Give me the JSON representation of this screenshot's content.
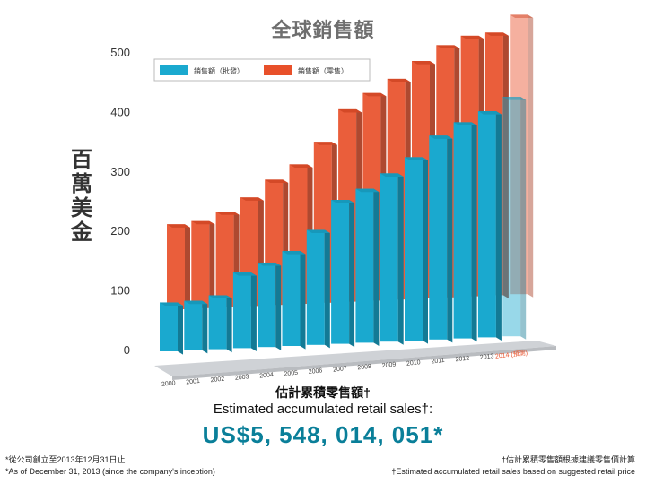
{
  "chart_data": {
    "type": "bar",
    "title": "全球銷售額",
    "ylabel": "百萬美金",
    "xlabel": "",
    "ylim": [
      0,
      500
    ],
    "yticks": [
      0,
      100,
      200,
      300,
      400,
      500
    ],
    "categories": [
      "2000",
      "2001",
      "2002",
      "2003",
      "2004",
      "2005",
      "2006",
      "2007",
      "2008",
      "2009",
      "2010",
      "2011",
      "2012",
      "2013",
      "2014 (預測)"
    ],
    "series": [
      {
        "name": "銷售額（批發）",
        "color": "#1aa9cf",
        "values": [
          88,
          89,
          97,
          136,
          152,
          171,
          207,
          259,
          277,
          303,
          330,
          367,
          389,
          407,
          431
        ]
      },
      {
        "name": "銷售額（零售）",
        "color": "#e8502a",
        "values": [
          162,
          166,
          182,
          207,
          239,
          266,
          307,
          367,
          396,
          421,
          453,
          481,
          497,
          501,
          533
        ]
      }
    ],
    "forecast_label": "2014 (預測)",
    "legend": "top-left"
  },
  "summary": {
    "title_zh": "估計累積零售額†",
    "title_en": "Estimated accumulated retail sales†:",
    "total": "US$5, 548, 014, 051*"
  },
  "footnotes": {
    "left_zh": "*從公司創立至2013年12月31日止",
    "left_en": "*As of December 31, 2013 (since the company's inception)",
    "right_zh": "†估計累積零售額根據建議零售價計算",
    "right_en": "†Estimated accumulated retail sales based on suggested retail price"
  },
  "colors": {
    "wholesale": "#1aa9cf",
    "retail": "#e8502a",
    "total": "#0a7f99"
  }
}
